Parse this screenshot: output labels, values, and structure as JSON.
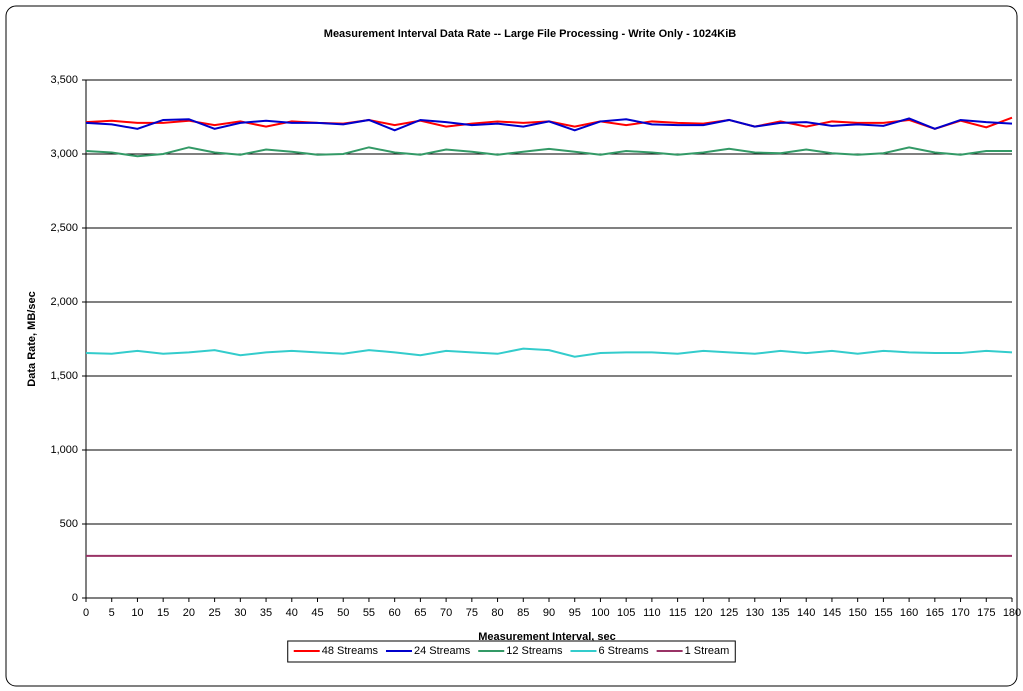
{
  "chart_data": {
    "type": "line",
    "title": "Measurement Interval Data Rate -- Large File Processing - Write Only - 1024KiB",
    "x_label": "Measurement Interval, sec",
    "y_label": "Data Rate, MB/sec",
    "x": [
      0,
      5,
      10,
      15,
      20,
      25,
      30,
      35,
      40,
      45,
      50,
      55,
      60,
      65,
      70,
      75,
      80,
      85,
      90,
      95,
      100,
      105,
      110,
      115,
      120,
      125,
      130,
      135,
      140,
      145,
      150,
      155,
      160,
      165,
      170,
      175,
      180
    ],
    "xlim": [
      0,
      180
    ],
    "xticks": [
      0,
      5,
      10,
      15,
      20,
      25,
      30,
      35,
      40,
      45,
      50,
      55,
      60,
      65,
      70,
      75,
      80,
      85,
      90,
      95,
      100,
      105,
      110,
      115,
      120,
      125,
      130,
      135,
      140,
      145,
      150,
      155,
      160,
      165,
      170,
      175,
      180
    ],
    "ylim": [
      0,
      3500
    ],
    "yticks": [
      0,
      500,
      {
        "value": 1000,
        "label": "1,000"
      },
      {
        "value": 1500,
        "label": "1,500"
      },
      {
        "value": 2000,
        "label": "2,000"
      },
      {
        "value": 2500,
        "label": "2,500"
      },
      {
        "value": 3000,
        "label": "3,000"
      },
      {
        "value": 3500,
        "label": "3,500"
      }
    ],
    "grid": true,
    "legend": "bottom",
    "series": [
      {
        "name": "48 Streams",
        "color": "#ff0000",
        "values": [
          3215,
          3225,
          3210,
          3210,
          3225,
          3195,
          3220,
          3185,
          3220,
          3210,
          3205,
          3230,
          3195,
          3225,
          3185,
          3205,
          3220,
          3210,
          3220,
          3185,
          3220,
          3195,
          3220,
          3210,
          3205,
          3230,
          3185,
          3220,
          3185,
          3220,
          3210,
          3210,
          3230,
          3170,
          3225,
          3180,
          3245
        ]
      },
      {
        "name": "24 Streams",
        "color": "#0000cc",
        "values": [
          3210,
          3200,
          3170,
          3230,
          3235,
          3170,
          3210,
          3225,
          3210,
          3210,
          3200,
          3230,
          3160,
          3230,
          3215,
          3195,
          3205,
          3185,
          3220,
          3160,
          3220,
          3235,
          3200,
          3195,
          3195,
          3230,
          3185,
          3210,
          3215,
          3190,
          3200,
          3190,
          3240,
          3170,
          3230,
          3215,
          3205
        ]
      },
      {
        "name": "12 Streams",
        "color": "#339966",
        "values": [
          3020,
          3010,
          2985,
          3000,
          3045,
          3010,
          2995,
          3030,
          3015,
          2995,
          3000,
          3045,
          3010,
          2995,
          3030,
          3015,
          2995,
          3015,
          3035,
          3015,
          2995,
          3020,
          3010,
          2995,
          3010,
          3035,
          3010,
          3005,
          3030,
          3005,
          2995,
          3005,
          3045,
          3010,
          2995,
          3020,
          3020
        ]
      },
      {
        "name": "6 Streams",
        "color": "#33cccc",
        "values": [
          1655,
          1650,
          1670,
          1650,
          1660,
          1675,
          1640,
          1660,
          1670,
          1660,
          1650,
          1675,
          1660,
          1640,
          1670,
          1660,
          1650,
          1685,
          1675,
          1630,
          1655,
          1660,
          1660,
          1650,
          1670,
          1660,
          1650,
          1670,
          1655,
          1670,
          1650,
          1670,
          1660,
          1655,
          1655,
          1670,
          1660
        ]
      },
      {
        "name": "1 Stream",
        "color": "#993366",
        "values": [
          285,
          285,
          285,
          285,
          285,
          285,
          285,
          285,
          285,
          285,
          285,
          285,
          285,
          285,
          285,
          285,
          285,
          285,
          285,
          285,
          285,
          285,
          285,
          285,
          285,
          285,
          285,
          285,
          285,
          285,
          285,
          285,
          285,
          285,
          285,
          285,
          285
        ]
      }
    ]
  }
}
